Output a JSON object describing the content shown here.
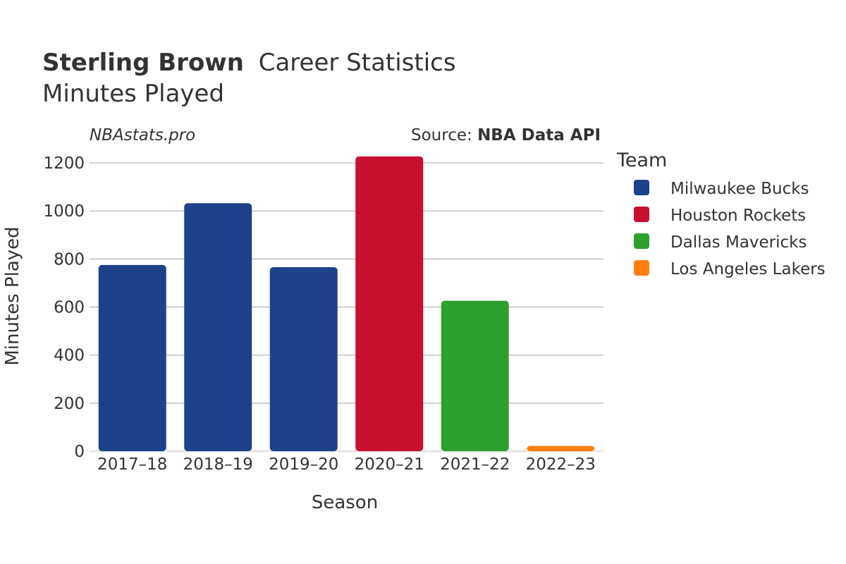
{
  "header": {
    "title_name": "Sterling Brown",
    "title_rest": "Career Statistics",
    "subtitle": "Minutes Played",
    "site": "NBAstats.pro",
    "source_prefix": "Source: ",
    "source_name": "NBA Data API"
  },
  "legend": {
    "title": "Team",
    "items": [
      {
        "label": "Milwaukee Bucks",
        "color": "#1d428a"
      },
      {
        "label": "Houston Rockets",
        "color": "#c8102e"
      },
      {
        "label": "Dallas Mavericks",
        "color": "#2ca02c"
      },
      {
        "label": "Los Angeles Lakers",
        "color": "#ff7f0e"
      }
    ]
  },
  "chart_data": {
    "type": "bar",
    "xlabel": "Season",
    "ylabel": "Minutes Played",
    "ylim": [
      0,
      1250
    ],
    "yticks": [
      0,
      200,
      400,
      600,
      800,
      1000,
      1200
    ],
    "grid": true,
    "legend_position": "right",
    "categories": [
      "2017–18",
      "2018–19",
      "2019–20",
      "2020–21",
      "2021–22",
      "2022–23"
    ],
    "values": [
      775,
      1032,
      766,
      1227,
      626,
      22
    ],
    "teams": [
      "Milwaukee Bucks",
      "Milwaukee Bucks",
      "Milwaukee Bucks",
      "Houston Rockets",
      "Dallas Mavericks",
      "Los Angeles Lakers"
    ]
  }
}
